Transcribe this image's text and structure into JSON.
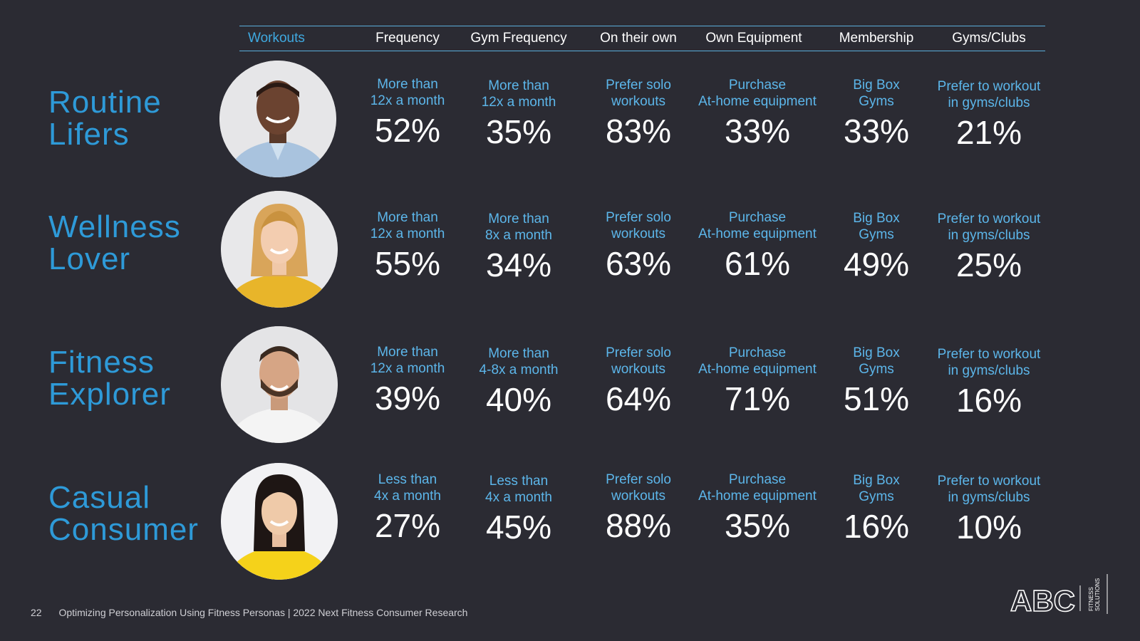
{
  "columns": [
    "Workouts",
    "Frequency",
    "Gym Frequency",
    "On their own",
    "Own Equipment",
    "Membership",
    "Gyms/Clubs"
  ],
  "personas": [
    {
      "name_lines": [
        "Routine",
        "Lifers"
      ],
      "avatar": "man-blue-shirt-avatar",
      "metrics": [
        {
          "label": [
            "More than",
            "12x a month"
          ],
          "value": "52%"
        },
        {
          "label": [
            "More than",
            "12x a month"
          ],
          "value": "35%"
        },
        {
          "label": [
            "Prefer solo",
            "workouts"
          ],
          "value": "83%"
        },
        {
          "label": [
            "Purchase",
            "At-home equipment"
          ],
          "value": "33%"
        },
        {
          "label": [
            "Big Box",
            "Gyms"
          ],
          "value": "33%"
        },
        {
          "label": [
            "Prefer to workout",
            "in gyms/clubs"
          ],
          "value": "21%"
        }
      ]
    },
    {
      "name_lines": [
        "Wellness",
        "Lover"
      ],
      "avatar": "woman-yellow-sweater-avatar",
      "metrics": [
        {
          "label": [
            "More than",
            "12x a month"
          ],
          "value": "55%"
        },
        {
          "label": [
            "More than",
            "8x a month"
          ],
          "value": "34%"
        },
        {
          "label": [
            "Prefer solo",
            "workouts"
          ],
          "value": "63%"
        },
        {
          "label": [
            "Purchase",
            "At-home equipment"
          ],
          "value": "61%"
        },
        {
          "label": [
            "Big Box",
            "Gyms"
          ],
          "value": "49%"
        },
        {
          "label": [
            "Prefer to workout",
            "in gyms/clubs"
          ],
          "value": "25%"
        }
      ]
    },
    {
      "name_lines": [
        "Fitness",
        "Explorer"
      ],
      "avatar": "man-white-tshirt-avatar",
      "metrics": [
        {
          "label": [
            "More than",
            "12x a month"
          ],
          "value": "39%"
        },
        {
          "label": [
            "More than",
            "4-8x a month"
          ],
          "value": "40%"
        },
        {
          "label": [
            "Prefer solo",
            "workouts"
          ],
          "value": "64%"
        },
        {
          "label": [
            "Purchase",
            "At-home equipment"
          ],
          "value": "71%"
        },
        {
          "label": [
            "Big Box",
            "Gyms"
          ],
          "value": "51%"
        },
        {
          "label": [
            "Prefer to workout",
            "in gyms/clubs"
          ],
          "value": "16%"
        }
      ]
    },
    {
      "name_lines": [
        "Casual",
        "Consumer"
      ],
      "avatar": "woman-yellow-tshirt-avatar",
      "metrics": [
        {
          "label": [
            "Less than",
            "4x a month"
          ],
          "value": "27%"
        },
        {
          "label": [
            "Less than",
            "4x a month"
          ],
          "value": "45%"
        },
        {
          "label": [
            "Prefer solo",
            "workouts"
          ],
          "value": "88%"
        },
        {
          "label": [
            "Purchase",
            "At-home equipment"
          ],
          "value": "35%"
        },
        {
          "label": [
            "Big Box",
            "Gyms"
          ],
          "value": "16%"
        },
        {
          "label": [
            "Prefer to workout",
            "in gyms/clubs"
          ],
          "value": "10%"
        }
      ]
    }
  ],
  "footer": {
    "page": "22",
    "text": "Optimizing Personalization Using Fitness Personas |  2022 Next Fitness Consumer Research"
  },
  "logo": {
    "brand": "ABC",
    "tagline_lines": [
      "FITNESS",
      "SOLUTIONS"
    ],
    "icon": "abc-fitness-logo"
  },
  "colors": {
    "background": "#2b2b33",
    "persona": "#2e9ad8",
    "label": "#5cb6ea",
    "header_accent": "#3fa9e0"
  }
}
